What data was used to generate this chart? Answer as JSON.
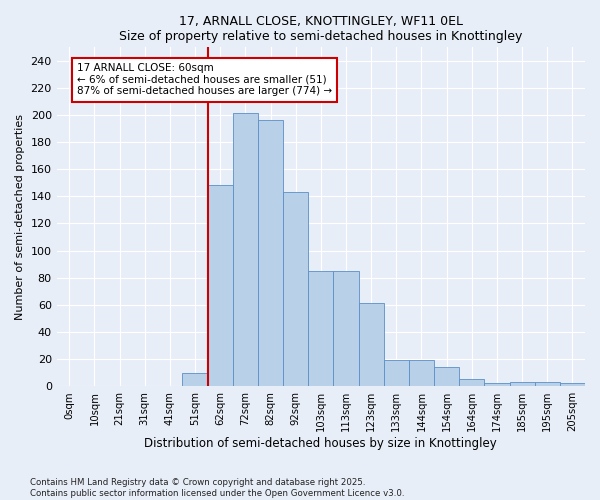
{
  "title1": "17, ARNALL CLOSE, KNOTTINGLEY, WF11 0EL",
  "title2": "Size of property relative to semi-detached houses in Knottingley",
  "xlabel": "Distribution of semi-detached houses by size in Knottingley",
  "ylabel": "Number of semi-detached properties",
  "bar_labels": [
    "0sqm",
    "10sqm",
    "21sqm",
    "31sqm",
    "41sqm",
    "51sqm",
    "62sqm",
    "72sqm",
    "82sqm",
    "92sqm",
    "103sqm",
    "113sqm",
    "123sqm",
    "133sqm",
    "144sqm",
    "154sqm",
    "164sqm",
    "174sqm",
    "185sqm",
    "195sqm",
    "205sqm"
  ],
  "bar_values": [
    0,
    0,
    0,
    0,
    0,
    10,
    148,
    201,
    196,
    143,
    85,
    85,
    61,
    19,
    19,
    14,
    5,
    2,
    3,
    3,
    2
  ],
  "bar_color": "#b8d0e8",
  "bar_edge_color": "#5b8fc7",
  "vline_x": 6.0,
  "annotation_title": "17 ARNALL CLOSE: 60sqm",
  "annotation_line1": "← 6% of semi-detached houses are smaller (51)",
  "annotation_line2": "87% of semi-detached houses are larger (774) →",
  "vline_color": "#cc0000",
  "annotation_box_color": "#cc0000",
  "ylim": [
    0,
    250
  ],
  "yticks": [
    0,
    20,
    40,
    60,
    80,
    100,
    120,
    140,
    160,
    180,
    200,
    220,
    240
  ],
  "footer": "Contains HM Land Registry data © Crown copyright and database right 2025.\nContains public sector information licensed under the Open Government Licence v3.0.",
  "bg_color": "#e8eef8",
  "grid_color": "#ffffff"
}
